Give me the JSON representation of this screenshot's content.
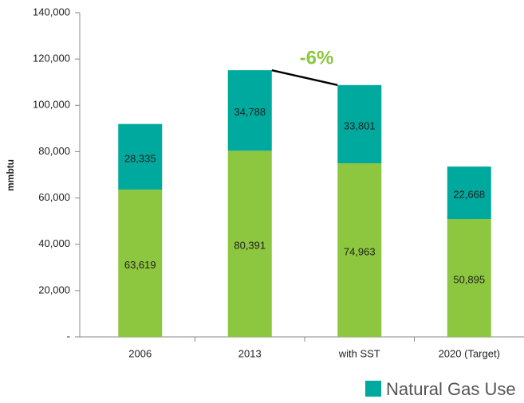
{
  "chart_data": {
    "type": "stacked_bar",
    "y_label": "mmbtu",
    "annotation": "-6%",
    "categories": [
      "2006",
      "2013",
      "with SST",
      "2020 (Target)"
    ],
    "series": [
      {
        "color": "#8dc63f",
        "values": [
          63619,
          80391,
          74963,
          50895
        ],
        "value_labels": [
          "63,619",
          "80,391",
          "74,963",
          "50,895"
        ]
      },
      {
        "name": "Natural Gas Use",
        "color": "#00a99d",
        "values": [
          28335,
          34788,
          33801,
          22668
        ],
        "value_labels": [
          "28,335",
          "34,788",
          "33,801",
          "22,668"
        ]
      }
    ],
    "ylim": [
      0,
      140000
    ],
    "yticks": [
      {
        "value": 0,
        "label": "-"
      },
      {
        "value": 20000,
        "label": "20,000"
      },
      {
        "value": 40000,
        "label": "40,000"
      },
      {
        "value": 60000,
        "label": "60,000"
      },
      {
        "value": 80000,
        "label": "80,000"
      },
      {
        "value": 100000,
        "label": "100,000"
      },
      {
        "value": 120000,
        "label": "120,000"
      },
      {
        "value": 140000,
        "label": "140,000"
      }
    ],
    "grid": false
  }
}
